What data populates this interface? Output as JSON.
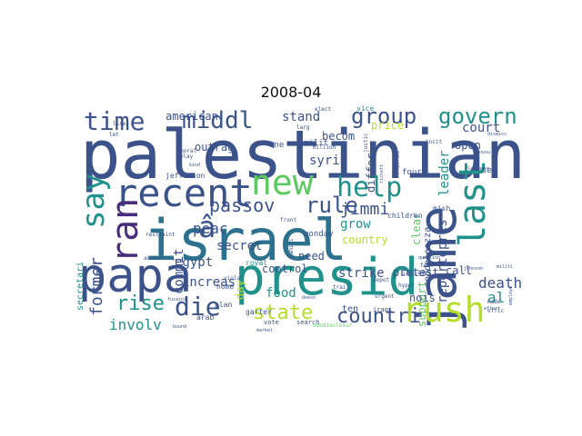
{
  "figure": {
    "title": "2008-04"
  },
  "colors": {
    "background": "#ffffff",
    "palette": [
      "#3b528b",
      "#21918c",
      "#5ec962",
      "#b5de2b",
      "#2c728e",
      "#472d7b",
      "#fde725"
    ]
  },
  "cloud": {
    "words": [
      {
        "text": "palestinian",
        "weight": 1.0,
        "color": "#3b528b",
        "vertical": false
      },
      {
        "text": "israel",
        "weight": 0.9,
        "color": "#2c728e",
        "vertical": false
      },
      {
        "text": "papa",
        "weight": 0.85,
        "color": "#3b528b",
        "vertical": false
      },
      {
        "text": "presid",
        "weight": 0.8,
        "color": "#21918c",
        "vertical": false
      },
      {
        "text": "new",
        "weight": 0.7,
        "color": "#5ec962",
        "vertical": false
      },
      {
        "text": "recent",
        "weight": 0.65,
        "color": "#3b528b",
        "vertical": false
      },
      {
        "text": "jame",
        "weight": 0.65,
        "color": "#3b528b",
        "vertical": true
      },
      {
        "text": "rush",
        "weight": 0.6,
        "color": "#b5de2b",
        "vertical": false
      },
      {
        "text": "help",
        "weight": 0.55,
        "color": "#21918c",
        "vertical": false
      },
      {
        "text": "last",
        "weight": 0.55,
        "color": "#21918c",
        "vertical": true
      },
      {
        "text": "ran",
        "weight": 0.55,
        "color": "#472d7b",
        "vertical": true
      },
      {
        "text": "say",
        "weight": 0.5,
        "color": "#21918c",
        "vertical": true
      },
      {
        "text": "die",
        "weight": 0.45,
        "color": "#3b528b",
        "vertical": false
      },
      {
        "text": "â",
        "weight": 0.45,
        "color": "#3b528b",
        "vertical": false
      },
      {
        "text": "rule",
        "weight": 0.4,
        "color": "#3b528b",
        "vertical": false
      },
      {
        "text": "middl",
        "weight": 0.4,
        "color": "#3b528b",
        "vertical": false
      },
      {
        "text": "time",
        "weight": 0.4,
        "color": "#3b528b",
        "vertical": false
      },
      {
        "text": "group",
        "weight": 0.35,
        "color": "#3b528b",
        "vertical": false
      },
      {
        "text": "govern",
        "weight": 0.35,
        "color": "#21918c",
        "vertical": false
      },
      {
        "text": "countri",
        "weight": 0.35,
        "color": "#3b528b",
        "vertical": false
      },
      {
        "text": "state",
        "weight": 0.35,
        "color": "#b5de2b",
        "vertical": false
      },
      {
        "text": "rise",
        "weight": 0.35,
        "color": "#21918c",
        "vertical": false
      },
      {
        "text": "passov",
        "weight": 0.3,
        "color": "#3b528b",
        "vertical": false
      },
      {
        "text": "jimmi",
        "weight": 0.25,
        "color": "#3b528b",
        "vertical": false
      },
      {
        "text": "former",
        "weight": 0.25,
        "color": "#3b528b",
        "vertical": true
      },
      {
        "text": "involv",
        "weight": 0.22,
        "color": "#21918c",
        "vertical": false
      },
      {
        "text": "court",
        "weight": 0.2,
        "color": "#3b528b",
        "vertical": false
      },
      {
        "text": "stand",
        "weight": 0.2,
        "color": "#3b528b",
        "vertical": false
      },
      {
        "text": "leader",
        "weight": 0.2,
        "color": "#21918c",
        "vertical": true
      },
      {
        "text": "reportepres",
        "weight": 0.2,
        "color": "#3b528b",
        "vertical": true
      },
      {
        "text": "death",
        "weight": 0.18,
        "color": "#3b528b",
        "vertical": false
      },
      {
        "text": "al",
        "weight": 0.2,
        "color": "#21918c",
        "vertical": false
      },
      {
        "text": "peac",
        "weight": 0.18,
        "color": "#3b528b",
        "vertical": false
      },
      {
        "text": "secret",
        "weight": 0.16,
        "color": "#3b528b",
        "vertical": false
      },
      {
        "text": "american",
        "weight": 0.14,
        "color": "#3b528b",
        "vertical": false
      },
      {
        "text": "syria",
        "weight": 0.16,
        "color": "#3b528b",
        "vertical": false
      },
      {
        "text": "differ",
        "weight": 0.15,
        "color": "#3b528b",
        "vertical": true
      },
      {
        "text": "grow",
        "weight": 0.15,
        "color": "#21918c",
        "vertical": false
      },
      {
        "text": "commit",
        "weight": 0.16,
        "color": "#3b528b",
        "vertical": true
      },
      {
        "text": "egypt",
        "weight": 0.14,
        "color": "#3b528b",
        "vertical": false
      },
      {
        "text": "increas",
        "weight": 0.15,
        "color": "#3b528b",
        "vertical": false
      },
      {
        "text": "food",
        "weight": 0.14,
        "color": "#21918c",
        "vertical": false
      },
      {
        "text": "control",
        "weight": 0.13,
        "color": "#3b528b",
        "vertical": false
      },
      {
        "text": "strike",
        "weight": 0.14,
        "color": "#3b528b",
        "vertical": false
      },
      {
        "text": "protest",
        "weight": 0.13,
        "color": "#3b528b",
        "vertical": false
      },
      {
        "text": "call",
        "weight": 0.13,
        "color": "#3b528b",
        "vertical": false
      },
      {
        "text": "need",
        "weight": 0.13,
        "color": "#3b528b",
        "vertical": false
      },
      {
        "text": "support",
        "weight": 0.13,
        "color": "#5ec962",
        "vertical": true
      },
      {
        "text": "clear",
        "weight": 0.14,
        "color": "#5ec962",
        "vertical": true
      },
      {
        "text": "open",
        "weight": 0.13,
        "color": "#3b528b",
        "vertical": false
      },
      {
        "text": "price",
        "weight": 0.14,
        "color": "#b5de2b",
        "vertical": false
      },
      {
        "text": "becom",
        "weight": 0.12,
        "color": "#3b528b",
        "vertical": false
      },
      {
        "text": "condoleezza",
        "weight": 0.11,
        "color": "#3b528b",
        "vertical": true
      },
      {
        "text": "country",
        "weight": 0.12,
        "color": "#b5de2b",
        "vertical": false
      },
      {
        "text": "outrag",
        "weight": 0.12,
        "color": "#3b528b",
        "vertical": false
      },
      {
        "text": "day",
        "weight": 0.11,
        "color": "#b5de2b",
        "vertical": true
      },
      {
        "text": "ten",
        "weight": 0.1,
        "color": "#3b528b",
        "vertical": false
      },
      {
        "text": "nois",
        "weight": 0.11,
        "color": "#3b528b",
        "vertical": false
      },
      {
        "text": "secretari",
        "weight": 0.08,
        "color": "#21918c",
        "vertical": true
      },
      {
        "text": "monday",
        "weight": 0.08,
        "color": "#3b528b",
        "vertical": false
      },
      {
        "text": "milit",
        "weight": 0.08,
        "color": "#3b528b",
        "vertical": false
      },
      {
        "text": "four",
        "weight": 0.08,
        "color": "#3b528b",
        "vertical": false
      },
      {
        "text": "set",
        "weight": 0.08,
        "color": "#3b528b",
        "vertical": false
      },
      {
        "text": "jefferson",
        "weight": 0.07,
        "color": "#3b528b",
        "vertical": false
      },
      {
        "text": "children",
        "weight": 0.07,
        "color": "#3b528b",
        "vertical": false
      },
      {
        "text": "mish",
        "weight": 0.07,
        "color": "#3b528b",
        "vertical": false
      },
      {
        "text": "one",
        "weight": 0.07,
        "color": "#3b528b",
        "vertical": false
      },
      {
        "text": "royal",
        "weight": 0.06,
        "color": "#21918c",
        "vertical": false
      },
      {
        "text": "home",
        "weight": 0.07,
        "color": "#3b528b",
        "vertical": false
      },
      {
        "text": "plan",
        "weight": 0.06,
        "color": "#3b528b",
        "vertical": false
      },
      {
        "text": "arab",
        "weight": 0.06,
        "color": "#3b528b",
        "vertical": false
      },
      {
        "text": "garter",
        "weight": 0.06,
        "color": "#3b528b",
        "vertical": false
      },
      {
        "text": "vote",
        "weight": 0.05,
        "color": "#3b528b",
        "vertical": false
      },
      {
        "text": "search",
        "weight": 0.05,
        "color": "#3b528b",
        "vertical": false
      },
      {
        "text": "nondisclosur",
        "weight": 0.05,
        "color": "#5ec962",
        "vertical": false
      },
      {
        "text": "iraqi",
        "weight": 0.05,
        "color": "#3b528b",
        "vertical": false
      },
      {
        "text": "urgent",
        "weight": 0.05,
        "color": "#3b528b",
        "vertical": false
      },
      {
        "text": "trail",
        "weight": 0.05,
        "color": "#3b528b",
        "vertical": false
      },
      {
        "text": "depot",
        "weight": 0.05,
        "color": "#3b528b",
        "vertical": false
      },
      {
        "text": "question",
        "weight": 0.04,
        "color": "#3b528b",
        "vertical": false
      },
      {
        "text": "feel",
        "weight": 0.04,
        "color": "#3b528b",
        "vertical": false
      },
      {
        "text": "bori",
        "weight": 0.04,
        "color": "#3b528b",
        "vertical": false
      },
      {
        "text": "articul",
        "weight": 0.04,
        "color": "#3b528b",
        "vertical": false
      },
      {
        "text": "hyper",
        "weight": 0.04,
        "color": "#3b528b",
        "vertical": false
      },
      {
        "text": "access",
        "weight": 0.04,
        "color": "#3b528b",
        "vertical": false
      },
      {
        "text": "violat",
        "weight": 0.04,
        "color": "#3b528b",
        "vertical": false
      },
      {
        "text": "front",
        "weight": 0.04,
        "color": "#3b528b",
        "vertical": false
      },
      {
        "text": "restraint",
        "weight": 0.04,
        "color": "#3b528b",
        "vertical": false
      },
      {
        "text": "delay",
        "weight": 0.04,
        "color": "#3b528b",
        "vertical": false
      },
      {
        "text": "moral",
        "weight": 0.04,
        "color": "#3b528b",
        "vertical": false
      },
      {
        "text": "larg",
        "weight": 0.04,
        "color": "#3b528b",
        "vertical": false
      },
      {
        "text": "vice",
        "weight": 0.05,
        "color": "#21918c",
        "vertical": false
      },
      {
        "text": "elect",
        "weight": 0.04,
        "color": "#3b528b",
        "vertical": false
      },
      {
        "text": "line",
        "weight": 0.04,
        "color": "#3b528b",
        "vertical": false
      },
      {
        "text": "let",
        "weight": 0.04,
        "color": "#3b528b",
        "vertical": false
      },
      {
        "text": "incit",
        "weight": 0.04,
        "color": "#3b528b",
        "vertical": false
      },
      {
        "text": "justic",
        "weight": 0.04,
        "color": "#3b528b",
        "vertical": true
      },
      {
        "text": "conspiraci",
        "weight": 0.04,
        "color": "#3b528b",
        "vertical": true
      },
      {
        "text": "rickett",
        "weight": 0.04,
        "color": "#3b528b",
        "vertical": true
      },
      {
        "text": "made",
        "weight": 0.04,
        "color": "#3b528b",
        "vertical": false
      },
      {
        "text": "bound",
        "weight": 0.03,
        "color": "#3b528b",
        "vertical": false
      },
      {
        "text": "market",
        "weight": 0.03,
        "color": "#3b528b",
        "vertical": false
      },
      {
        "text": "johnson",
        "weight": 0.03,
        "color": "#3b528b",
        "vertical": false
      },
      {
        "text": "offic",
        "weight": 0.03,
        "color": "#3b528b",
        "vertical": false
      },
      {
        "text": "militi",
        "weight": 0.03,
        "color": "#3b528b",
        "vertical": false
      },
      {
        "text": "effort",
        "weight": 0.03,
        "color": "#3b528b",
        "vertical": false
      },
      {
        "text": "employe",
        "weight": 0.03,
        "color": "#3b528b",
        "vertical": true
      },
      {
        "text": "million",
        "weight": 0.03,
        "color": "#3b528b",
        "vertical": false
      },
      {
        "text": "kind",
        "weight": 0.03,
        "color": "#3b528b",
        "vertical": false
      },
      {
        "text": "fusaini",
        "weight": 0.03,
        "color": "#3b528b",
        "vertical": false
      },
      {
        "text": "doesn",
        "weight": 0.03,
        "color": "#3b528b",
        "vertical": false
      },
      {
        "text": "famili",
        "weight": 0.03,
        "color": "#3b528b",
        "vertical": true
      },
      {
        "text": "unusu",
        "weight": 0.03,
        "color": "#3b528b",
        "vertical": false
      },
      {
        "text": "labrador",
        "weight": 0.03,
        "color": "#3b528b",
        "vertical": false
      },
      {
        "text": "dismiss",
        "weight": 0.03,
        "color": "#3b528b",
        "vertical": false
      }
    ]
  }
}
